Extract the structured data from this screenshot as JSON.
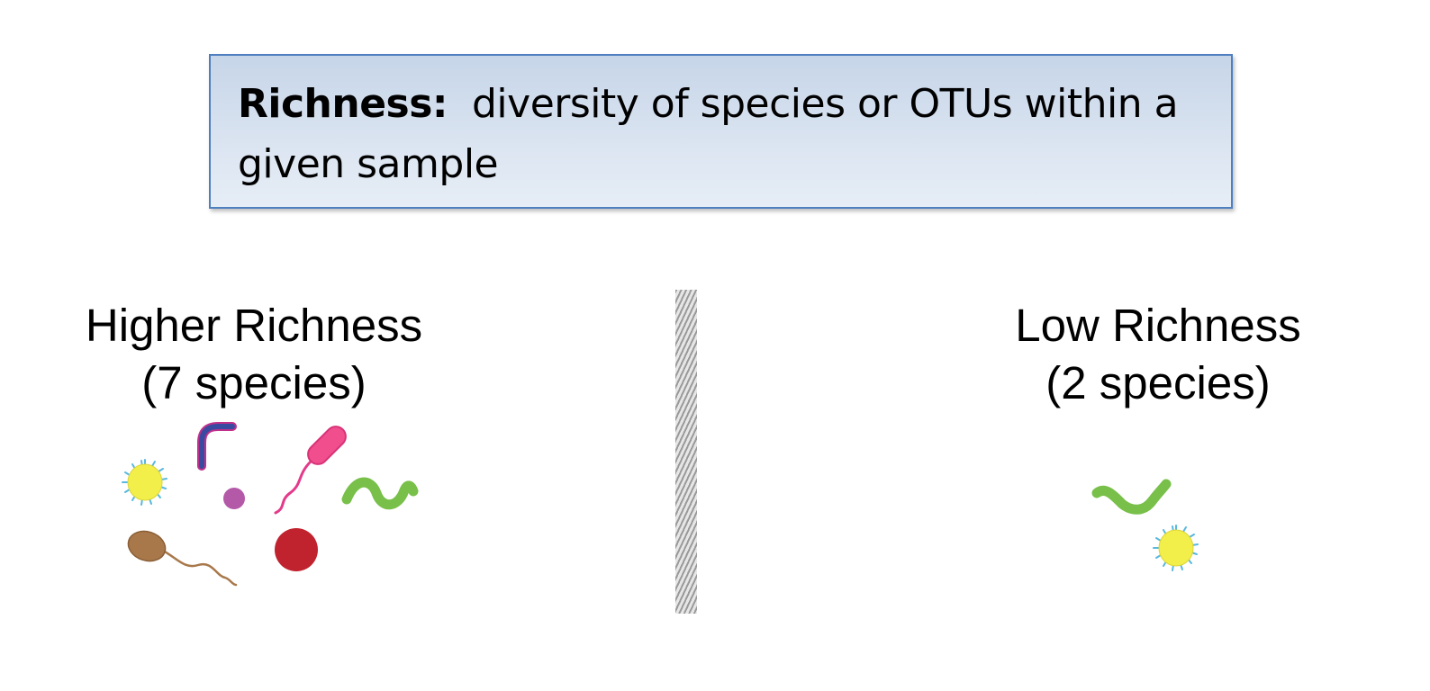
{
  "definition": {
    "term": "Richness:",
    "text": "diversity of species or OTUs within a given sample"
  },
  "panels": {
    "left": {
      "title_line1": "Higher Richness",
      "title_line2": "(7 species)",
      "species_count": 7
    },
    "right": {
      "title_line1": "Low Richness",
      "title_line2": "(2 species)",
      "species_count": 2
    }
  },
  "colors": {
    "box_border": "#4f7fbf",
    "box_fill": "#d3dfee",
    "coccus_yellow": "#f2ee4a",
    "spike_blue": "#58b8e0",
    "curved_rod": "#3a4aa0",
    "curved_rod_edge": "#c0308a",
    "purple_cell": "#b458a8",
    "pink_flagellate": "#f04e8c",
    "spirillum_green": "#78c04a",
    "brown_flagellate": "#a8784a",
    "red_coccus": "#c0222e"
  },
  "icons": [
    "yellow-spiky-coccus-icon",
    "curved-rod-icon",
    "purple-coccus-icon",
    "pink-flagellate-icon",
    "green-spirillum-icon",
    "brown-flagellate-icon",
    "red-coccus-icon"
  ]
}
